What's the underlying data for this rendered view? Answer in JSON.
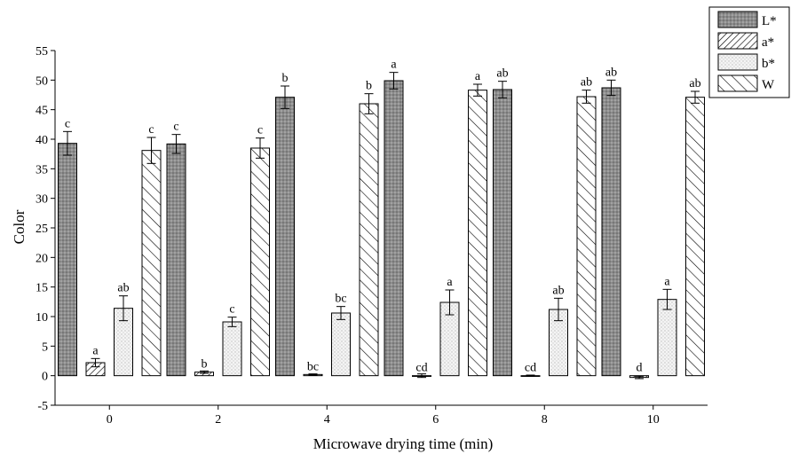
{
  "chart_data": {
    "type": "bar",
    "xlabel": "Microwave drying time (min)",
    "ylabel": "Color",
    "categories": [
      "0",
      "2",
      "4",
      "6",
      "8",
      "10"
    ],
    "ylim": [
      -5,
      55
    ],
    "yticks": [
      -5,
      0,
      5,
      10,
      15,
      20,
      25,
      30,
      35,
      40,
      45,
      50,
      55
    ],
    "legend_position": "top-right",
    "series": [
      {
        "name": "L*",
        "pattern": "dots-dark",
        "values": [
          39.3,
          39.2,
          47.1,
          49.9,
          48.4,
          48.7
        ],
        "errors": [
          2.0,
          1.6,
          1.9,
          1.4,
          1.4,
          1.3
        ],
        "labels": [
          "c",
          "c",
          "b",
          "a",
          "ab",
          "ab"
        ]
      },
      {
        "name": "a*",
        "pattern": "diagonal-dense",
        "values": [
          2.2,
          0.6,
          0.2,
          0.0,
          0.0,
          -0.3
        ],
        "errors": [
          0.7,
          0.2,
          0.1,
          0.3,
          0.1,
          0.2
        ],
        "labels": [
          "a",
          "b",
          "bc",
          "cd",
          "cd",
          "d"
        ]
      },
      {
        "name": "b*",
        "pattern": "dots-light",
        "values": [
          11.4,
          9.1,
          10.6,
          12.4,
          11.2,
          12.9
        ],
        "errors": [
          2.1,
          0.8,
          1.1,
          2.1,
          1.9,
          1.7
        ],
        "labels": [
          "ab",
          "c",
          "bc",
          "a",
          "ab",
          "a"
        ]
      },
      {
        "name": "W",
        "pattern": "diagonal-sparse",
        "values": [
          38.1,
          38.5,
          46.0,
          48.3,
          47.2,
          47.1
        ],
        "errors": [
          2.2,
          1.7,
          1.7,
          1.0,
          1.1,
          1.0
        ],
        "labels": [
          "c",
          "c",
          "b",
          "a",
          "ab",
          "ab"
        ]
      }
    ]
  }
}
